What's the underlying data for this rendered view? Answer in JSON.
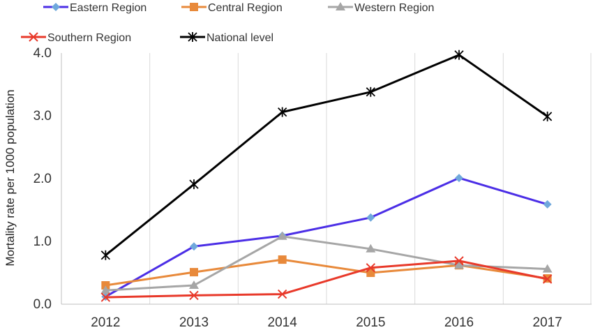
{
  "chart_data": {
    "type": "line",
    "title": "",
    "xlabel": "",
    "ylabel": "Mortality rate per 1000 population",
    "categories": [
      "2012",
      "2013",
      "2014",
      "2015",
      "2016",
      "2017"
    ],
    "ylim": [
      0,
      4.0
    ],
    "yticks": [
      "0.0",
      "1.0",
      "2.0",
      "3.0",
      "4.0"
    ],
    "grid": "vertical",
    "legend_position": "top",
    "series": [
      {
        "name": "Eastern Region",
        "color": "#4b2ee6",
        "marker": "diamond",
        "marker_color": "#6fa8dc",
        "values": [
          0.12,
          0.92,
          1.09,
          1.38,
          2.01,
          1.59
        ]
      },
      {
        "name": "Central  Region",
        "color": "#e8893a",
        "marker": "square",
        "marker_color": "#e8893a",
        "values": [
          0.3,
          0.51,
          0.71,
          0.5,
          0.62,
          0.41
        ]
      },
      {
        "name": "Western Region",
        "color": "#a6a6a6",
        "marker": "triangle",
        "marker_color": "#a6a6a6",
        "values": [
          0.22,
          0.3,
          1.08,
          0.88,
          0.62,
          0.56
        ]
      },
      {
        "name": "Southern Region",
        "color": "#e8392a",
        "marker": "x",
        "marker_color": "#e8392a",
        "values": [
          0.11,
          0.14,
          0.16,
          0.58,
          0.69,
          0.4
        ]
      },
      {
        "name": "National level",
        "color": "#000000",
        "marker": "asterisk",
        "marker_color": "#000000",
        "values": [
          0.78,
          1.91,
          3.06,
          3.38,
          3.97,
          2.99
        ]
      }
    ]
  }
}
